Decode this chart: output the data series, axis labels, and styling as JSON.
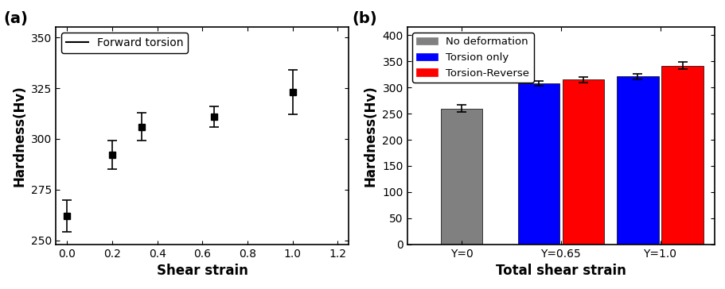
{
  "plot_a": {
    "x": [
      0.0,
      0.2,
      0.33,
      0.65,
      1.0
    ],
    "y": [
      262,
      292,
      306,
      311,
      323
    ],
    "yerr": [
      8,
      7,
      7,
      5,
      11
    ],
    "xlabel": "Shear strain",
    "ylabel": "Hardness(Hv)",
    "xlim": [
      -0.05,
      1.25
    ],
    "ylim": [
      248,
      355
    ],
    "yticks": [
      250,
      275,
      300,
      325,
      350
    ],
    "xticks": [
      0.0,
      0.2,
      0.4,
      0.6,
      0.8,
      1.0,
      1.2
    ],
    "legend_label": "Forward torsion",
    "panel_label": "(a)"
  },
  "plot_b": {
    "categories": [
      "Υ=0",
      "Υ=0.65",
      "Υ=1.0"
    ],
    "no_def_val": 260,
    "no_def_err": 7,
    "torsion_vals": [
      308,
      321
    ],
    "torsion_errs": [
      5,
      5
    ],
    "reverse_vals": [
      315,
      342
    ],
    "reverse_errs": [
      5,
      7
    ],
    "xlabel": "Total shear strain",
    "ylabel": "Hardness(Hv)",
    "ylim": [
      0,
      415
    ],
    "yticks": [
      0,
      50,
      100,
      150,
      200,
      250,
      300,
      350,
      400
    ],
    "legend_labels": [
      "No deformation",
      "Torsion only",
      "Torsion-Reverse"
    ],
    "colors": [
      "#808080",
      "#0000ff",
      "#ff0000"
    ],
    "panel_label": "(b)"
  },
  "fig_width": 9.12,
  "fig_height": 3.64
}
